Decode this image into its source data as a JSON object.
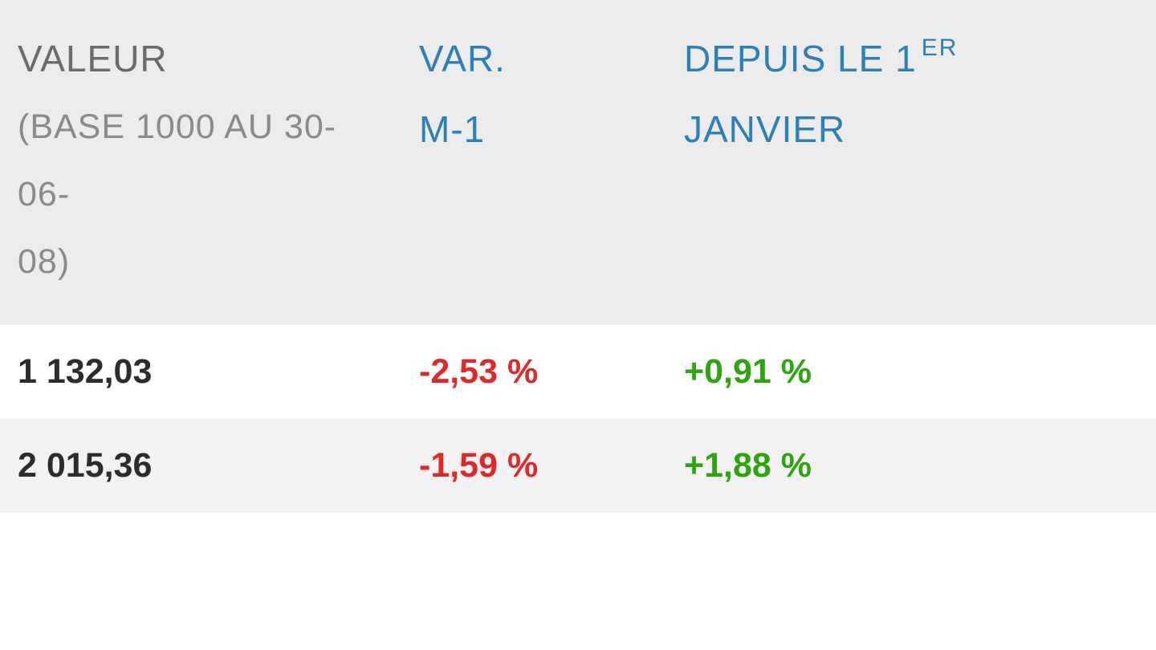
{
  "table": {
    "headers": {
      "valeur": {
        "line1": "VALEUR",
        "line2": "(BASE 1000 AU 30-06-",
        "line3": "08)"
      },
      "var": {
        "line1": "VAR.",
        "line2": "M-1"
      },
      "depuis": {
        "line1_prefix": "DEPUIS LE 1",
        "line1_sup": "ER",
        "line2": "JANVIER"
      }
    },
    "rows": [
      {
        "valeur": "1 132,03",
        "var": "-2,53 %",
        "var_color": "red",
        "depuis": "+0,91 %",
        "depuis_color": "green"
      },
      {
        "valeur": "2 015,36",
        "var": "-1,59 %",
        "var_color": "red",
        "depuis": "+1,88 %",
        "depuis_color": "green"
      }
    ],
    "colors": {
      "header_bg": "#ececec",
      "row_odd_bg": "#ffffff",
      "row_even_bg": "#f2f2f2",
      "text_gray": "#6b6b6b",
      "text_gray_light": "#8a8a8a",
      "text_blue": "#2b80b8",
      "text_black": "#2c2c2c",
      "text_red": "#e12828",
      "text_green": "#2ea50f"
    },
    "typography": {
      "header_fontsize": 46,
      "subheader_fontsize": 43,
      "cell_fontsize": 43,
      "sup_fontsize": 30,
      "font_family": "Segoe UI"
    }
  }
}
